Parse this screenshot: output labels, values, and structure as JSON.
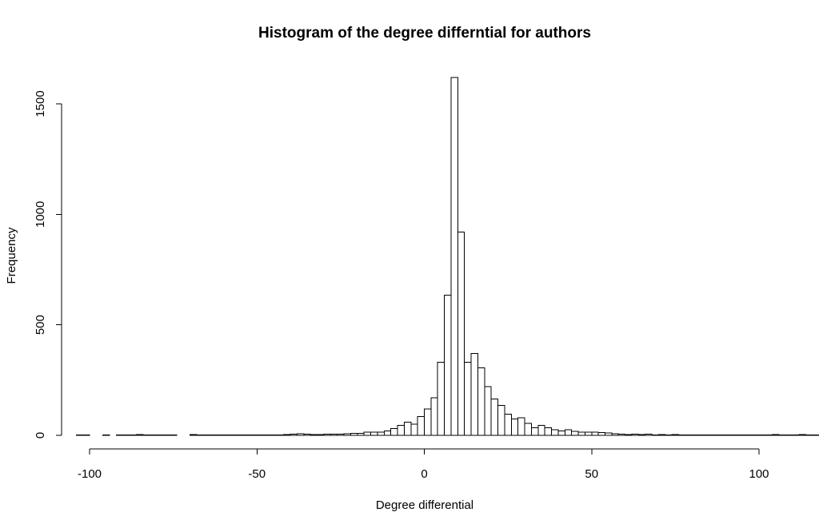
{
  "chart_data": {
    "type": "bar",
    "title": "Histogram of the degree differntial for authors",
    "xlabel": "Degree differential",
    "ylabel": "Frequency",
    "xlim": [
      -105,
      107
    ],
    "ylim": [
      0,
      1620
    ],
    "xticks": [
      -100,
      -50,
      0,
      50,
      100
    ],
    "xtick_labels": [
      "-100",
      "-50",
      "0",
      "50",
      "100"
    ],
    "yticks": [
      0,
      500,
      1000,
      1500
    ],
    "ytick_labels": [
      "0",
      "500",
      "1000",
      "1500"
    ],
    "bin_width": 2,
    "bins_start": -104,
    "counts": [
      1,
      1,
      0,
      0,
      1,
      0,
      1,
      2,
      1,
      3,
      1,
      1,
      1,
      1,
      1,
      0,
      0,
      3,
      1,
      1,
      1,
      1,
      2,
      1,
      1,
      1,
      2,
      1,
      1,
      2,
      2,
      4,
      6,
      7,
      5,
      4,
      4,
      5,
      5,
      6,
      7,
      9,
      9,
      14,
      15,
      15,
      20,
      30,
      45,
      60,
      50,
      85,
      120,
      170,
      330,
      635,
      1620,
      920,
      330,
      370,
      305,
      220,
      165,
      135,
      95,
      75,
      80,
      55,
      35,
      45,
      35,
      25,
      20,
      25,
      18,
      15,
      15,
      14,
      12,
      10,
      8,
      6,
      4,
      6,
      3,
      6,
      2,
      3,
      1,
      3,
      1,
      1,
      1,
      1,
      1,
      1,
      1,
      1,
      1,
      1,
      1,
      1,
      1,
      1,
      4,
      1,
      1,
      1,
      4,
      1,
      1,
      1,
      1,
      1,
      1,
      1,
      2,
      1,
      1,
      1
    ]
  }
}
